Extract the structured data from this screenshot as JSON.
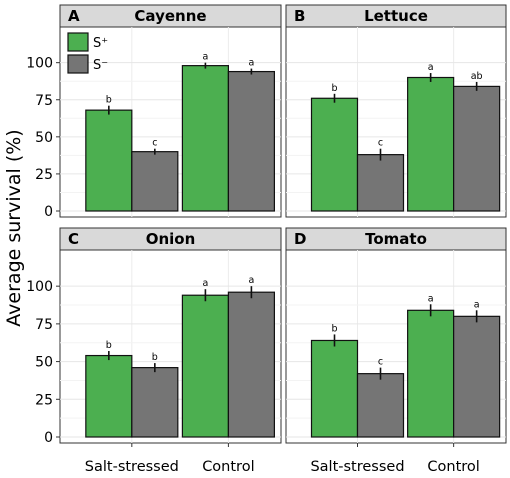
{
  "figure": {
    "ylabel": "Average survival (%)"
  },
  "legend": {
    "items": [
      {
        "label": "S⁺",
        "color": "#4caf50"
      },
      {
        "label": "S⁻",
        "color": "#757575"
      }
    ]
  },
  "chart_data": [
    {
      "type": "bar",
      "panel_letter": "A",
      "title": "Cayenne",
      "categories": [
        "Salt-stressed",
        "Control"
      ],
      "series": [
        {
          "name": "S⁺",
          "values": [
            68,
            98
          ],
          "errors": [
            3,
            2
          ],
          "labels": [
            "b",
            "a"
          ]
        },
        {
          "name": "S⁻",
          "values": [
            40,
            94
          ],
          "errors": [
            2,
            2
          ],
          "labels": [
            "c",
            "a"
          ]
        }
      ],
      "ylim": [
        0,
        120
      ],
      "yticks": [
        0,
        25,
        50,
        75,
        100
      ]
    },
    {
      "type": "bar",
      "panel_letter": "B",
      "title": "Lettuce",
      "categories": [
        "Salt-stressed",
        "Control"
      ],
      "series": [
        {
          "name": "S⁺",
          "values": [
            76,
            90
          ],
          "errors": [
            3,
            3
          ],
          "labels": [
            "b",
            "a"
          ]
        },
        {
          "name": "S⁻",
          "values": [
            38,
            84
          ],
          "errors": [
            4,
            3
          ],
          "labels": [
            "c",
            "ab"
          ]
        }
      ],
      "ylim": [
        0,
        120
      ],
      "yticks": [
        0,
        25,
        50,
        75,
        100
      ]
    },
    {
      "type": "bar",
      "panel_letter": "C",
      "title": "Onion",
      "categories": [
        "Salt-stressed",
        "Control"
      ],
      "series": [
        {
          "name": "S⁺",
          "values": [
            54,
            94
          ],
          "errors": [
            3,
            4
          ],
          "labels": [
            "b",
            "a"
          ]
        },
        {
          "name": "S⁻",
          "values": [
            46,
            96
          ],
          "errors": [
            3,
            4
          ],
          "labels": [
            "b",
            "a"
          ]
        }
      ],
      "ylim": [
        0,
        120
      ],
      "yticks": [
        0,
        25,
        50,
        75,
        100
      ]
    },
    {
      "type": "bar",
      "panel_letter": "D",
      "title": "Tomato",
      "categories": [
        "Salt-stressed",
        "Control"
      ],
      "series": [
        {
          "name": "S⁺",
          "values": [
            64,
            84
          ],
          "errors": [
            4,
            4
          ],
          "labels": [
            "b",
            "a"
          ]
        },
        {
          "name": "S⁻",
          "values": [
            42,
            80
          ],
          "errors": [
            4,
            4
          ],
          "labels": [
            "c",
            "a"
          ]
        }
      ],
      "ylim": [
        0,
        120
      ],
      "yticks": [
        0,
        25,
        50,
        75,
        100
      ]
    }
  ]
}
